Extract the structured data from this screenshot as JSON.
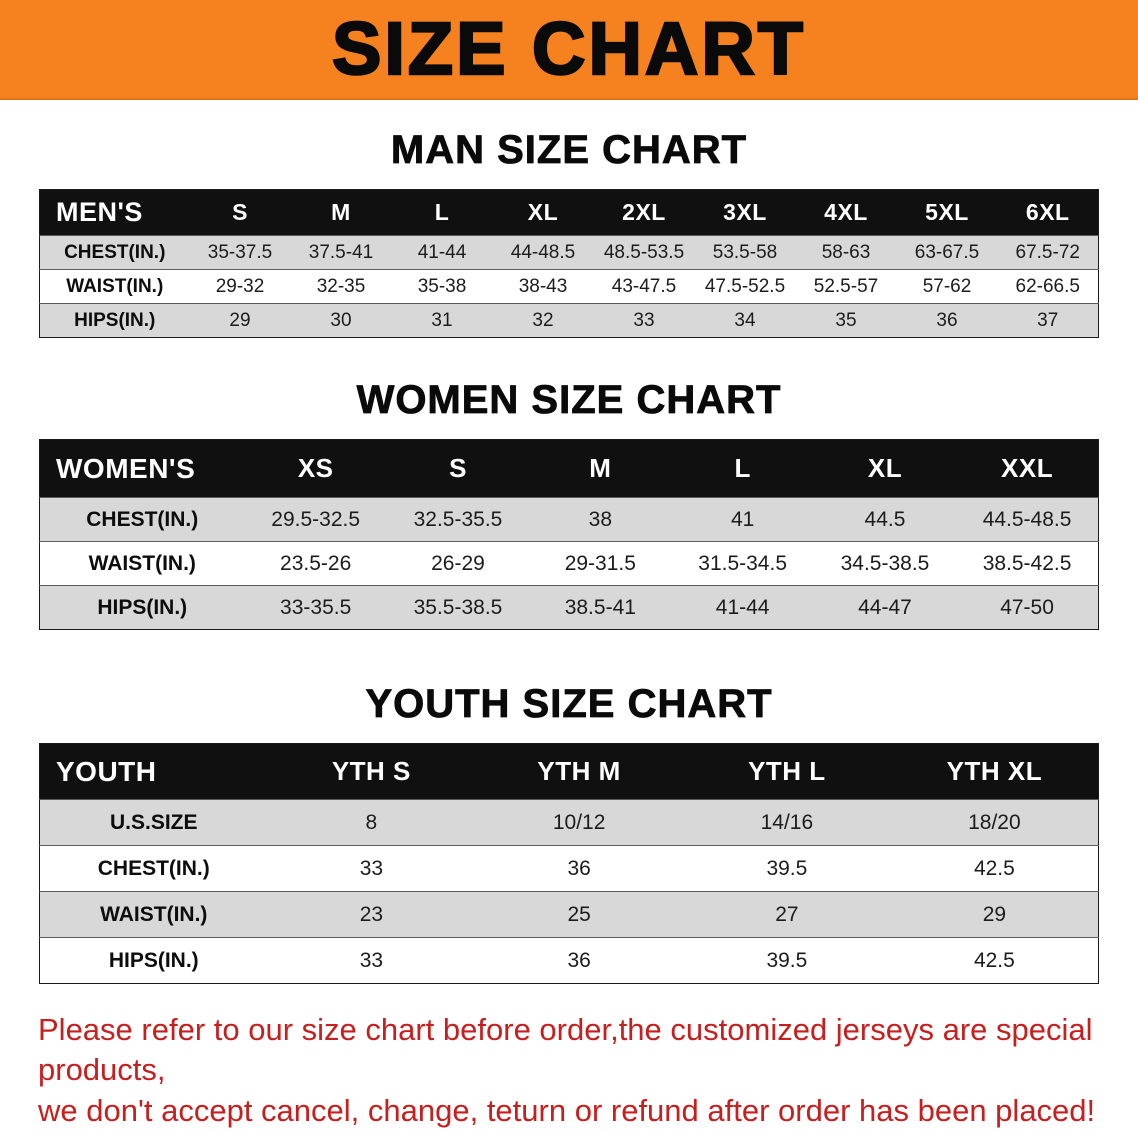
{
  "colors": {
    "banner-orange": "#f6821f",
    "header-black": "#101010",
    "row-gray": "#d8d8d8",
    "note-red": "#c81e1e"
  },
  "banner": {
    "title": "SIZE CHART"
  },
  "chart_data": [
    {
      "type": "table",
      "title": "MAN SIZE CHART",
      "columns": [
        "MEN'S",
        "S",
        "M",
        "L",
        "XL",
        "2XL",
        "3XL",
        "4XL",
        "5XL",
        "6XL"
      ],
      "rows": [
        [
          "CHEST(IN.)",
          "35-37.5",
          "37.5-41",
          "41-44",
          "44-48.5",
          "48.5-53.5",
          "53.5-58",
          "58-63",
          "63-67.5",
          "67.5-72"
        ],
        [
          "WAIST(IN.)",
          "29-32",
          "32-35",
          "35-38",
          "38-43",
          "43-47.5",
          "47.5-52.5",
          "52.5-57",
          "57-62",
          "62-66.5"
        ],
        [
          "HIPS(IN.)",
          "29",
          "30",
          "31",
          "32",
          "33",
          "34",
          "35",
          "36",
          "37"
        ]
      ]
    },
    {
      "type": "table",
      "title": "WOMEN SIZE CHART",
      "columns": [
        "WOMEN'S",
        "XS",
        "S",
        "M",
        "L",
        "XL",
        "XXL"
      ],
      "rows": [
        [
          "CHEST(IN.)",
          "29.5-32.5",
          "32.5-35.5",
          "38",
          "41",
          "44.5",
          "44.5-48.5"
        ],
        [
          "WAIST(IN.)",
          "23.5-26",
          "26-29",
          "29-31.5",
          "31.5-34.5",
          "34.5-38.5",
          "38.5-42.5"
        ],
        [
          "HIPS(IN.)",
          "33-35.5",
          "35.5-38.5",
          "38.5-41",
          "41-44",
          "44-47",
          "47-50"
        ]
      ]
    },
    {
      "type": "table",
      "title": "YOUTH SIZE CHART",
      "columns": [
        "YOUTH",
        "YTH S",
        "YTH M",
        "YTH L",
        "YTH XL"
      ],
      "rows": [
        [
          "U.S.SIZE",
          "8",
          "10/12",
          "14/16",
          "18/20"
        ],
        [
          "CHEST(IN.)",
          "33",
          "36",
          "39.5",
          "42.5"
        ],
        [
          "WAIST(IN.)",
          "23",
          "25",
          "27",
          "29"
        ],
        [
          "HIPS(IN.)",
          "33",
          "36",
          "39.5",
          "42.5"
        ]
      ]
    }
  ],
  "footer": {
    "line1": "Please refer to our size chart before order,the customized jerseys are special products,",
    "line2": "we don't accept cancel, change, teturn or refund after order has been placed!"
  }
}
